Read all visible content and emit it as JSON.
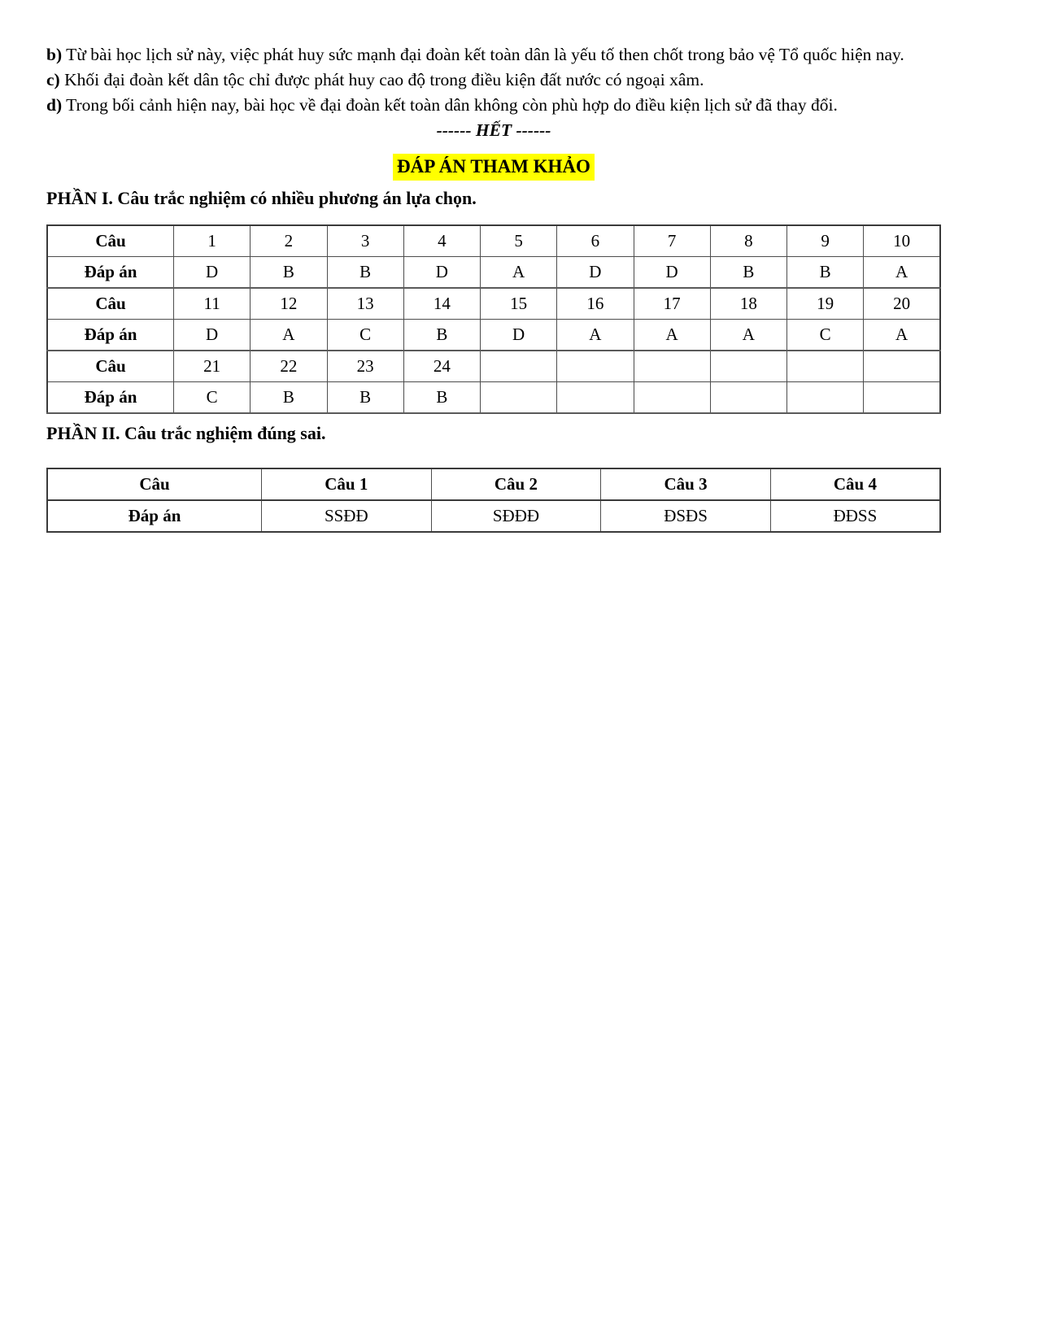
{
  "document": {
    "statements": [
      {
        "label": "b)",
        "text": "Từ bài học lịch sử này, việc phát huy sức mạnh đại đoàn kết toàn dân là yếu tố then chốt trong bảo vệ Tổ quốc hiện nay."
      },
      {
        "label": "c)",
        "text": "Khối đại đoàn kết dân tộc chỉ được phát huy cao độ trong điều kiện đất nước có ngoại xâm."
      },
      {
        "label": "d)",
        "text": "Trong bối cảnh hiện nay, bài học về đại đoàn kết toàn dân không còn phù hợp do điều kiện lịch sử đã thay đổi."
      }
    ],
    "end_marker": "------ HẾT ------",
    "answer_title": "ĐÁP ÁN THAM KHẢO",
    "highlight_color": "#ffff00",
    "part1": {
      "heading": "PHẦN I. Câu trắc nghiệm có nhiều phương án lựa chọn.",
      "table": {
        "rows": [
          {
            "label": "Câu",
            "cells": [
              "1",
              "2",
              "3",
              "4",
              "5",
              "6",
              "7",
              "8",
              "9",
              "10"
            ]
          },
          {
            "label": "Đáp án",
            "cells": [
              "D",
              "B",
              "B",
              "D",
              "A",
              "D",
              "D",
              "B",
              "B",
              "A"
            ]
          },
          {
            "label": "Câu",
            "cells": [
              "11",
              "12",
              "13",
              "14",
              "15",
              "16",
              "17",
              "18",
              "19",
              "20"
            ]
          },
          {
            "label": "Đáp án",
            "cells": [
              "D",
              "A",
              "C",
              "B",
              "D",
              "A",
              "A",
              "A",
              "C",
              "A"
            ]
          },
          {
            "label": "Câu",
            "cells": [
              "21",
              "22",
              "23",
              "24",
              "",
              "",
              "",
              "",
              "",
              ""
            ]
          },
          {
            "label": "Đáp án",
            "cells": [
              "C",
              "B",
              "B",
              "B",
              "",
              "",
              "",
              "",
              "",
              ""
            ]
          }
        ]
      }
    },
    "part2": {
      "heading": "PHẦN II. Câu trắc nghiệm đúng sai.",
      "table": {
        "header_cells": [
          "Câu",
          "Câu 1",
          "Câu 2",
          "Câu 3",
          "Câu 4"
        ],
        "answer_row": {
          "label": "Đáp án",
          "cells": [
            "SSĐĐ",
            "SĐĐĐ",
            "ĐSĐS",
            "ĐĐSS"
          ]
        }
      }
    }
  }
}
